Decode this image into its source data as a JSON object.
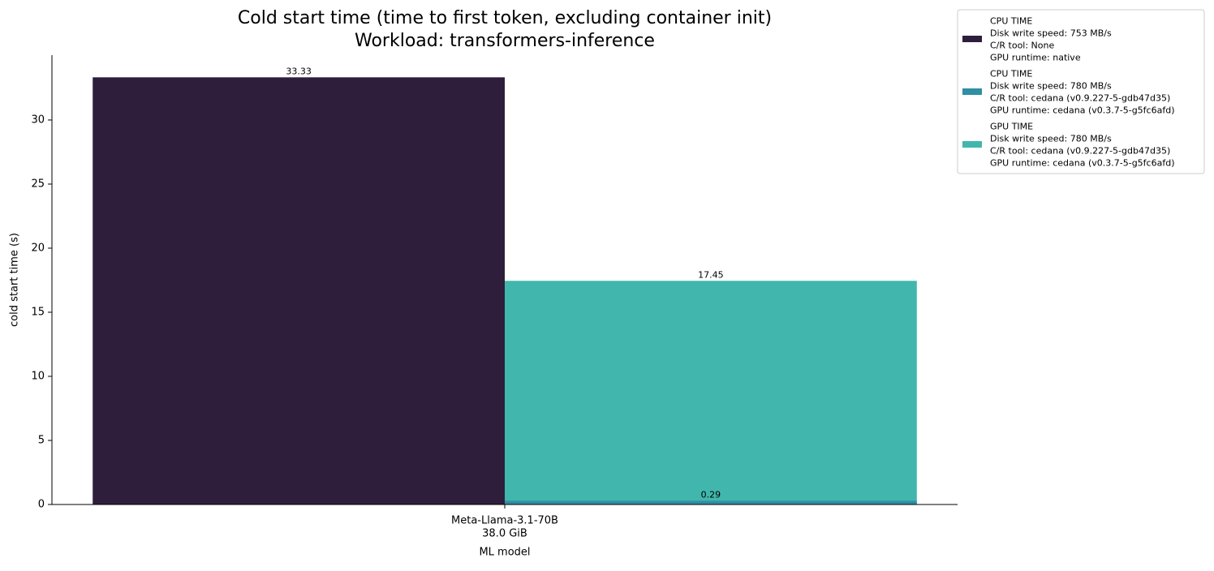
{
  "chart_data": {
    "type": "bar",
    "title": "Cold start time (time to first token, excluding container init)",
    "subtitle": "Workload: transformers-inference",
    "x_label": "ML model",
    "y_label": "cold start time (s)",
    "categories": [
      [
        "Meta-Llama-3.1-70B",
        "38.0 GiB"
      ]
    ],
    "series": [
      {
        "name": [
          "CPU TIME",
          "Disk write speed: 753 MB/s",
          "C/R tool: None",
          "GPU runtime: native"
        ],
        "color": "#2e1e3b",
        "values": [
          33.33
        ]
      },
      {
        "name": [
          "CPU TIME",
          "Disk write speed: 780 MB/s",
          "C/R tool: cedana (v0.9.227-5-gdb47d35)",
          "GPU runtime: cedana (v0.3.7-5-g5fc6afd)"
        ],
        "color": "#2f8fa3",
        "values": [
          0.29
        ]
      },
      {
        "name": [
          "GPU TIME",
          "Disk write speed: 780 MB/s",
          "C/R tool: cedana (v0.9.227-5-gdb47d35)",
          "GPU runtime: cedana (v0.3.7-5-g5fc6afd)"
        ],
        "color": "#41b6ad",
        "values": [
          17.45
        ]
      }
    ],
    "ylim": [
      0,
      35.06
    ],
    "yticks": [
      0,
      5,
      10,
      15,
      20,
      25,
      30
    ],
    "grid": false,
    "legend": "outside-upper-right"
  }
}
